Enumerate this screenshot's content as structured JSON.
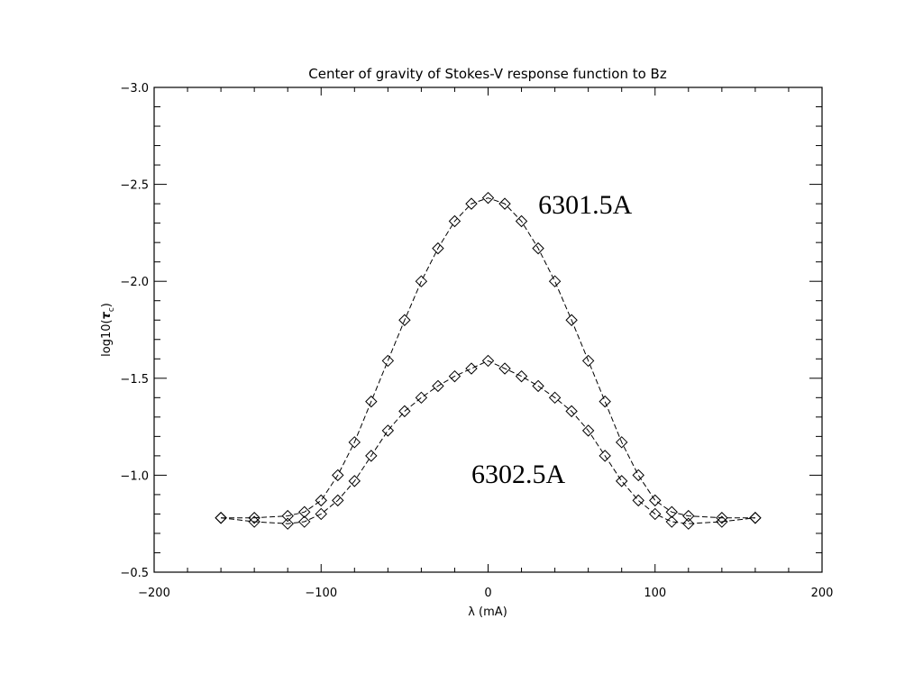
{
  "chart_data": {
    "type": "scatter",
    "title": "Center of gravity of Stokes-V response function to Bz",
    "xlabel": "λ (mA)",
    "ylabel_base": "log10(",
    "ylabel_symbol": "τ",
    "ylabel_sub": "c",
    "ylabel_close": ")",
    "xlim": [
      -200,
      200
    ],
    "ylim": [
      -0.5,
      -3.0
    ],
    "y_axis_inverted": true,
    "grid": false,
    "legend": "none",
    "x_ticks": [
      "-200",
      "-100",
      "0",
      "100",
      "200"
    ],
    "y_ticks": [
      "-0.5",
      "-1.0",
      "-1.5",
      "-2.0",
      "-2.5",
      "-3.0"
    ],
    "marker": "diamond-open",
    "color": "#000000",
    "annotations": [
      {
        "id": "ann-6301",
        "text": "6301.5A",
        "x": 30,
        "y": -2.35
      },
      {
        "id": "ann-6302",
        "text": "6302.5A",
        "x": -10,
        "y": -0.96
      }
    ],
    "series": [
      {
        "id": "line-6301",
        "x": [
          -160,
          -140,
          -120,
          -110,
          -100,
          -90,
          -80,
          -70,
          -60,
          -50,
          -40,
          -30,
          -20,
          -10,
          0,
          10,
          20,
          30,
          40,
          50,
          60,
          70,
          80,
          90,
          100,
          110,
          120,
          140,
          160
        ],
        "y": [
          -0.78,
          -0.78,
          -0.79,
          -0.81,
          -0.87,
          -1.0,
          -1.17,
          -1.38,
          -1.59,
          -1.8,
          -2.0,
          -2.17,
          -2.31,
          -2.4,
          -2.43,
          -2.4,
          -2.31,
          -2.17,
          -2.0,
          -1.8,
          -1.59,
          -1.38,
          -1.17,
          -1.0,
          -0.87,
          -0.81,
          -0.79,
          -0.78,
          -0.78
        ]
      },
      {
        "id": "line-6302",
        "x": [
          -160,
          -140,
          -120,
          -110,
          -100,
          -90,
          -80,
          -70,
          -60,
          -50,
          -40,
          -30,
          -20,
          -10,
          0,
          10,
          20,
          30,
          40,
          50,
          60,
          70,
          80,
          90,
          100,
          110,
          120,
          140,
          160
        ],
        "y": [
          -0.78,
          -0.76,
          -0.75,
          -0.76,
          -0.8,
          -0.87,
          -0.97,
          -1.1,
          -1.23,
          -1.33,
          -1.4,
          -1.46,
          -1.51,
          -1.55,
          -1.59,
          -1.55,
          -1.51,
          -1.46,
          -1.4,
          -1.33,
          -1.23,
          -1.1,
          -0.97,
          -0.87,
          -0.8,
          -0.76,
          -0.75,
          -0.76,
          -0.78
        ]
      }
    ]
  }
}
